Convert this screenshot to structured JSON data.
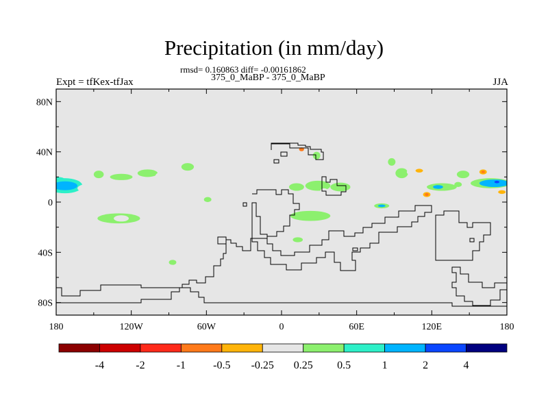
{
  "header": {
    "title": "Precipitation (in mm/day)",
    "stats": "rmsd= 0.160863 diff= -0.00161862",
    "case_label": "375_0_MaBP - 375_0_MaBP",
    "left_label": "Expt = tfKex-tfJax",
    "right_label": "JJA"
  },
  "chart_data": {
    "type": "heatmap",
    "projection": "cylindrical equidistant",
    "xlim": [
      -180,
      180
    ],
    "ylim": [
      -90,
      90
    ],
    "x_ticks": [
      {
        "value": -180,
        "label": "180"
      },
      {
        "value": -120,
        "label": "120W"
      },
      {
        "value": -60,
        "label": "60W"
      },
      {
        "value": 0,
        "label": "0"
      },
      {
        "value": 60,
        "label": "60E"
      },
      {
        "value": 120,
        "label": "120E"
      },
      {
        "value": 180,
        "label": "180"
      }
    ],
    "y_ticks": [
      {
        "value": 80,
        "label": "80N"
      },
      {
        "value": 40,
        "label": "40N"
      },
      {
        "value": 0,
        "label": "0"
      },
      {
        "value": -40,
        "label": "40S"
      },
      {
        "value": -80,
        "label": "80S"
      }
    ],
    "background_color": "#e6e6e6",
    "colorbar": {
      "colors": [
        "#8b0000",
        "#cc0000",
        "#ff2a1a",
        "#ff7a1a",
        "#ffb40a",
        "#e6e6e6",
        "#8cf06e",
        "#2df0c8",
        "#00b4ff",
        "#0a46ff",
        "#00007f"
      ],
      "labels": [
        "-4",
        "-2",
        "-1",
        "-0.5",
        "-0.25",
        "0.25",
        "0.5",
        "1",
        "2",
        "4"
      ]
    },
    "anomalies": [
      {
        "lon": -179,
        "lat": 17,
        "rlon": 7,
        "rlat": 3,
        "level": 0.5
      },
      {
        "lon": -173,
        "lat": 13,
        "rlon": 14,
        "rlat": 6,
        "level": 0.5
      },
      {
        "lon": -173,
        "lat": 13,
        "rlon": 10,
        "rlat": 3.5,
        "level": 1
      },
      {
        "lon": -150,
        "lat": 11,
        "rlon": 13,
        "rlat": 4,
        "level": -0.25
      },
      {
        "lon": -146,
        "lat": 22,
        "rlon": 4,
        "rlat": 3,
        "level": 0.25
      },
      {
        "lon": -128,
        "lat": 20,
        "rlon": 9,
        "rlat": 2.5,
        "level": 0.25
      },
      {
        "lon": -107,
        "lat": 23,
        "rlon": 8,
        "rlat": 3,
        "level": 0.25
      },
      {
        "lon": -97,
        "lat": 20,
        "rlon": 4,
        "rlat": 3.5,
        "level": -0.25
      },
      {
        "lon": -75,
        "lat": 28,
        "rlon": 5,
        "rlat": 3,
        "level": 0.25
      },
      {
        "lon": -79,
        "lat": 15,
        "rlon": 6,
        "rlat": 3,
        "level": -0.25
      },
      {
        "lon": -62,
        "lat": 9,
        "rlon": 10,
        "rlat": 3,
        "level": -0.25
      },
      {
        "lon": -36,
        "lat": 27,
        "rlon": 10,
        "rlat": 4,
        "level": -0.25
      },
      {
        "lon": -59,
        "lat": 2,
        "rlon": 3,
        "rlat": 2,
        "level": 0.25
      },
      {
        "lon": -163,
        "lat": -6,
        "rlon": 16,
        "rlat": 4,
        "level": -0.25
      },
      {
        "lon": -130,
        "lat": -13,
        "rlon": 17,
        "rlat": 4,
        "level": 0.25
      },
      {
        "lon": -128,
        "lat": -13,
        "rlon": 6,
        "rlat": 2.5,
        "level": -0.25
      },
      {
        "lon": -105,
        "lat": -15,
        "rlon": 6,
        "rlat": 3,
        "level": -0.25
      },
      {
        "lon": -137,
        "lat": -32,
        "rlon": 6,
        "rlat": 5,
        "level": -0.25
      },
      {
        "lon": -87,
        "lat": -27,
        "rlon": 8,
        "rlat": 4,
        "level": -0.25
      },
      {
        "lon": -87,
        "lat": -48,
        "rlon": 3,
        "rlat": 2,
        "level": 0.25
      },
      {
        "lon": -177,
        "lat": -43,
        "rlon": 4,
        "rlat": 3,
        "level": -0.25
      },
      {
        "lon": 14,
        "lat": 41,
        "rlon": 6,
        "rlat": 3.5,
        "level": -0.25
      },
      {
        "lon": 16,
        "lat": 42,
        "rlon": 2,
        "rlat": 1.5,
        "level": -1
      },
      {
        "lon": 28,
        "lat": 37,
        "rlon": 3,
        "rlat": 3,
        "level": 0.25
      },
      {
        "lon": 12,
        "lat": 12,
        "rlon": 6,
        "rlat": 3,
        "level": 0.25
      },
      {
        "lon": 29,
        "lat": 13,
        "rlon": 10,
        "rlat": 4,
        "level": 0.25
      },
      {
        "lon": 34,
        "lat": 9,
        "rlon": 3,
        "rlat": 2,
        "level": -0.25
      },
      {
        "lon": 47,
        "lat": 12,
        "rlon": 8,
        "rlat": 3.5,
        "level": 0.25
      },
      {
        "lon": 35,
        "lat": 0,
        "rlon": 13,
        "rlat": 3,
        "level": -0.25
      },
      {
        "lon": 23,
        "lat": -11,
        "rlon": 16,
        "rlat": 4,
        "level": 0.25
      },
      {
        "lon": 13,
        "lat": -30,
        "rlon": 4,
        "rlat": 2,
        "level": 0.25
      },
      {
        "lon": 68,
        "lat": 32,
        "rlon": 3,
        "rlat": 2,
        "level": -0.25
      },
      {
        "lon": 88,
        "lat": 32,
        "rlon": 3,
        "rlat": 3,
        "level": 0.25
      },
      {
        "lon": 96,
        "lat": 23,
        "rlon": 5,
        "rlat": 4,
        "level": 0.25
      },
      {
        "lon": 110,
        "lat": 24,
        "rlon": 10,
        "rlat": 4,
        "level": -0.25
      },
      {
        "lon": 110,
        "lat": 25,
        "rlon": 3,
        "rlat": 1.5,
        "level": -0.5
      },
      {
        "lon": 145,
        "lat": 22,
        "rlon": 5,
        "rlat": 3,
        "level": 0.25
      },
      {
        "lon": 128,
        "lat": 12,
        "rlon": 12,
        "rlat": 3,
        "level": 0.25
      },
      {
        "lon": 125,
        "lat": 12,
        "rlon": 4,
        "rlat": 1.5,
        "level": 1
      },
      {
        "lon": 116,
        "lat": 6,
        "rlon": 6,
        "rlat": 4,
        "level": -0.25
      },
      {
        "lon": 116,
        "lat": 6,
        "rlon": 3,
        "rlat": 2,
        "level": -0.5
      },
      {
        "lon": 116,
        "lat": 6,
        "rlon": 1.5,
        "rlat": 1.2,
        "level": -1
      },
      {
        "lon": 80,
        "lat": -3,
        "rlon": 6,
        "rlat": 2,
        "level": 0.25
      },
      {
        "lon": 80,
        "lat": -3,
        "rlon": 3,
        "rlat": 1,
        "level": 1
      },
      {
        "lon": 96,
        "lat": -4,
        "rlon": 4,
        "rlat": 2.5,
        "level": -0.25
      },
      {
        "lon": 112,
        "lat": 0,
        "rlon": 4,
        "rlat": 2,
        "level": -0.25
      },
      {
        "lon": 141,
        "lat": 14,
        "rlon": 3,
        "rlat": 2,
        "level": 0.25
      },
      {
        "lon": 166,
        "lat": 24,
        "rlon": 14,
        "rlat": 4,
        "level": -0.25
      },
      {
        "lon": 161,
        "lat": 24,
        "rlon": 3,
        "rlat": 2,
        "level": -0.5
      },
      {
        "lon": 161,
        "lat": 24,
        "rlon": 1.5,
        "rlat": 1,
        "level": -1
      },
      {
        "lon": 167,
        "lat": 15,
        "rlon": 16,
        "rlat": 4,
        "level": 0.25
      },
      {
        "lon": 170,
        "lat": 15,
        "rlon": 12,
        "rlat": 3,
        "level": 1
      },
      {
        "lon": 172,
        "lat": 16,
        "rlon": 2,
        "rlat": 1,
        "level": 2
      },
      {
        "lon": 168,
        "lat": 8,
        "rlon": 12,
        "rlat": 3,
        "level": -0.25
      },
      {
        "lon": 176,
        "lat": 8,
        "rlon": 3,
        "rlat": 1.5,
        "level": -0.5
      },
      {
        "lon": 108,
        "lat": -40,
        "rlon": 2,
        "rlat": 2,
        "level": -0.25
      },
      {
        "lon": 115,
        "lat": -34,
        "rlon": 1,
        "rlat": 2,
        "level": -0.25
      },
      {
        "lon": 178,
        "lat": -38,
        "rlon": 2,
        "rlat": 2,
        "level": -0.25
      }
    ]
  }
}
